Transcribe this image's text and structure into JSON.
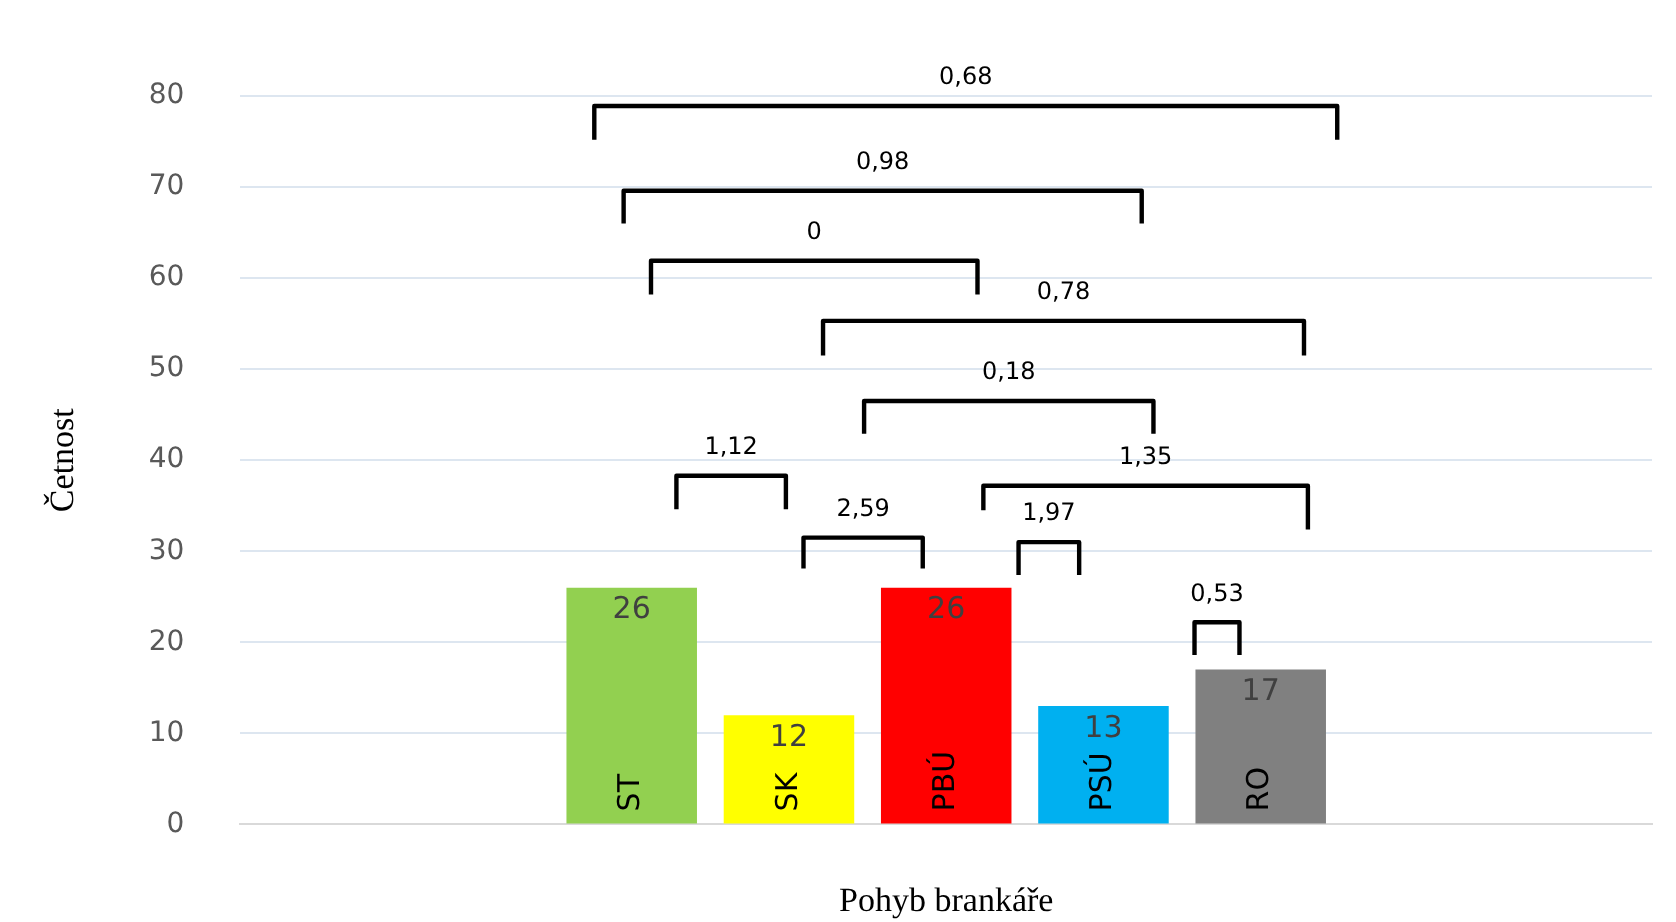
{
  "chart_data": {
    "type": "bar",
    "xlabel": "Pohyb brankáře",
    "ylabel": "Četnost",
    "categories": [
      null
    ],
    "series": [
      {
        "name": "ST",
        "color": "#92d050",
        "values": [
          26
        ]
      },
      {
        "name": "SK",
        "color": "#ffff00",
        "values": [
          12
        ]
      },
      {
        "name": "PBÚ",
        "color": "#ff0000",
        "values": [
          26
        ]
      },
      {
        "name": "PSÚ",
        "color": "#00b0f0",
        "values": [
          13
        ]
      },
      {
        "name": "RO",
        "color": "#808080",
        "values": [
          17
        ]
      }
    ],
    "ylim": [
      0,
      80
    ],
    "yticks": [
      0,
      10,
      20,
      30,
      40,
      50,
      60,
      70,
      80
    ],
    "grid": "y",
    "legend": false,
    "data_labels": true,
    "annotations": [
      "0,68",
      "0,98",
      "0",
      "0,78",
      "0,18",
      "1,12",
      "1,35",
      "2,59",
      "1,97",
      "0,53"
    ]
  }
}
